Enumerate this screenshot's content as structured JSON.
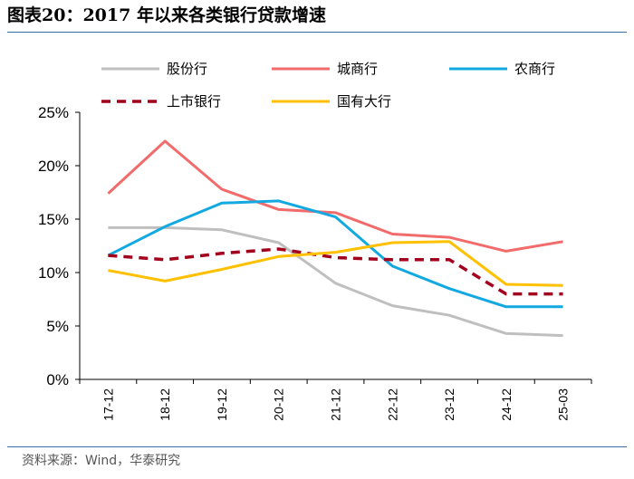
{
  "title_prefix": "图表20：",
  "title_text": "2017 年以来各类银行贷款增速",
  "source": "资料来源：Wind，华泰研究",
  "chart_data": {
    "type": "line",
    "title": "2017 年以来各类银行贷款增速",
    "xlabel": "",
    "ylabel": "",
    "ylim": [
      0,
      25
    ],
    "yticks": [
      "0%",
      "5%",
      "10%",
      "15%",
      "20%",
      "25%"
    ],
    "ytick_values": [
      0,
      5,
      10,
      15,
      20,
      25
    ],
    "categories": [
      "17-12",
      "18-12",
      "19-12",
      "20-12",
      "21-12",
      "22-12",
      "23-12",
      "24-12",
      "25-03"
    ],
    "series": [
      {
        "name": "股份行",
        "color": "#bfbfbf",
        "dash": "solid",
        "values": [
          14.2,
          14.2,
          14.0,
          12.8,
          9.0,
          6.9,
          6.0,
          4.3,
          4.1
        ]
      },
      {
        "name": "城商行",
        "color": "#f26b6b",
        "dash": "solid",
        "values": [
          17.4,
          22.3,
          17.8,
          15.9,
          15.6,
          13.6,
          13.3,
          12.0,
          12.9
        ]
      },
      {
        "name": "农商行",
        "color": "#12a9e1",
        "dash": "solid",
        "values": [
          11.6,
          14.3,
          16.5,
          16.7,
          15.2,
          10.6,
          8.5,
          6.8,
          6.8
        ]
      },
      {
        "name": "上市银行",
        "color": "#a3001e",
        "dash": "dashed",
        "values": [
          11.6,
          11.2,
          11.8,
          12.2,
          11.4,
          11.2,
          11.2,
          8.0,
          8.0
        ]
      },
      {
        "name": "国有大行",
        "color": "#ffc000",
        "dash": "solid",
        "values": [
          10.2,
          9.2,
          10.3,
          11.5,
          11.9,
          12.8,
          12.9,
          8.9,
          8.8
        ]
      }
    ],
    "legend_position": "top",
    "grid": false
  }
}
